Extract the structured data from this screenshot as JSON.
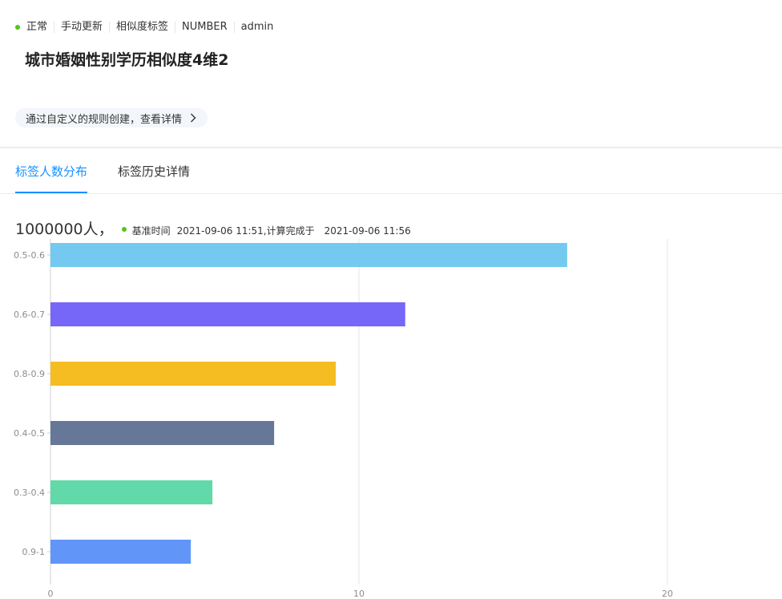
{
  "meta": {
    "status": "正常",
    "update_mode": "手动更新",
    "tag_type": "相似度标签",
    "value_type": "NUMBER",
    "owner": "admin"
  },
  "title": "城市婚姻性别学历相似度4维2",
  "rule_link": "通过自定义的规则创建，查看详情",
  "tabs": [
    {
      "label": "标签人数分布",
      "active": true
    },
    {
      "label": "标签历史详情",
      "active": false
    }
  ],
  "summary": {
    "count": "1000000人，",
    "base_time_label": "基准时间",
    "base_time": "2021-09-06 11:51,",
    "completed_label": "计算完成于",
    "completed_time": "2021-09-06 11:56"
  },
  "colors": {
    "status": "#52c41a",
    "accent": "#1890ff"
  },
  "chart_data": {
    "type": "bar",
    "orientation": "horizontal",
    "categories": [
      "0.5-0.6",
      "0.6-0.7",
      "0.8-0.9",
      "0.4-0.5",
      "0.3-0.4",
      "0.9-1"
    ],
    "values": [
      16.75,
      11.5,
      9.25,
      7.25,
      5.25,
      4.55
    ],
    "colors": [
      "#73c9ef",
      "#7667f8",
      "#f5bd22",
      "#667797",
      "#62d9a8",
      "#6295f8"
    ],
    "xlim": [
      0,
      24
    ],
    "xticks": [
      0,
      10,
      20
    ],
    "grid": true,
    "title": "",
    "xlabel": "",
    "ylabel": ""
  }
}
